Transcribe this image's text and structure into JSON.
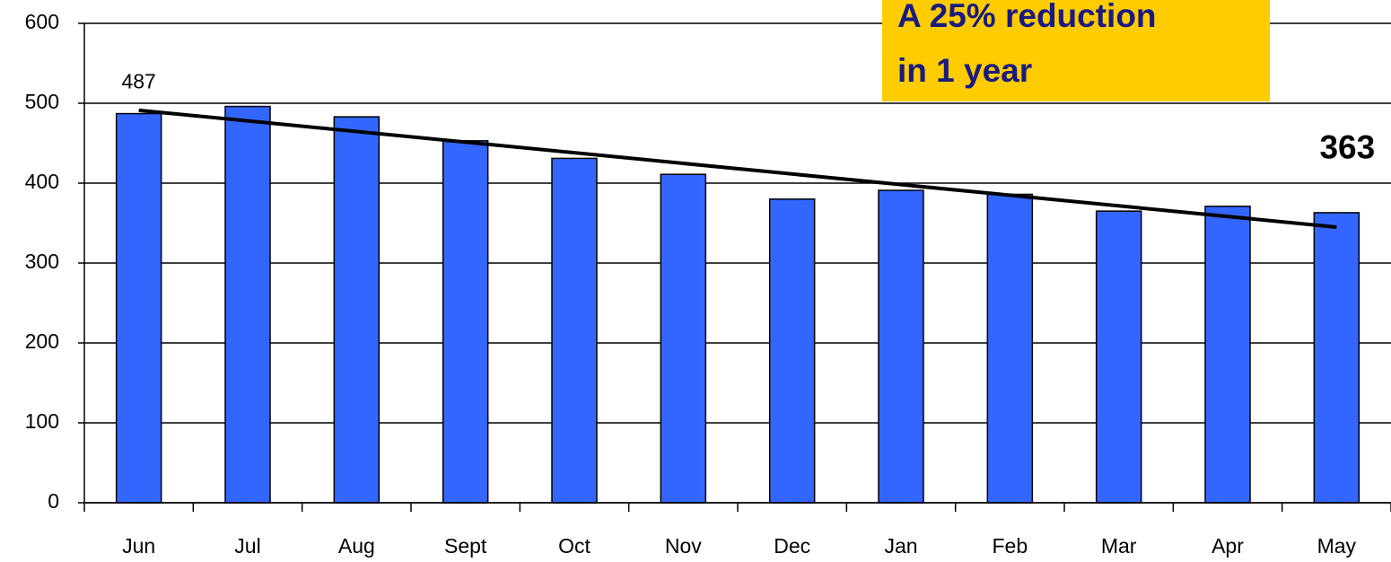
{
  "chart_data": {
    "type": "bar",
    "categories": [
      "Jun",
      "Jul",
      "Aug",
      "Sept",
      "Oct",
      "Nov",
      "Dec",
      "Jan",
      "Feb",
      "Mar",
      "Apr",
      "May"
    ],
    "values": [
      487,
      496,
      483,
      453,
      431,
      411,
      380,
      391,
      386,
      365,
      371,
      363
    ],
    "value_labels": [
      "487",
      null,
      null,
      null,
      null,
      null,
      null,
      null,
      null,
      null,
      null,
      "363"
    ],
    "color": "#3366ff",
    "ylim": [
      0,
      600
    ],
    "yticks": [
      0,
      100,
      200,
      300,
      400,
      500,
      600
    ],
    "grid": true,
    "trendline": "linear",
    "annotation": [
      "A 25% reduction",
      "in 1 year"
    ]
  }
}
